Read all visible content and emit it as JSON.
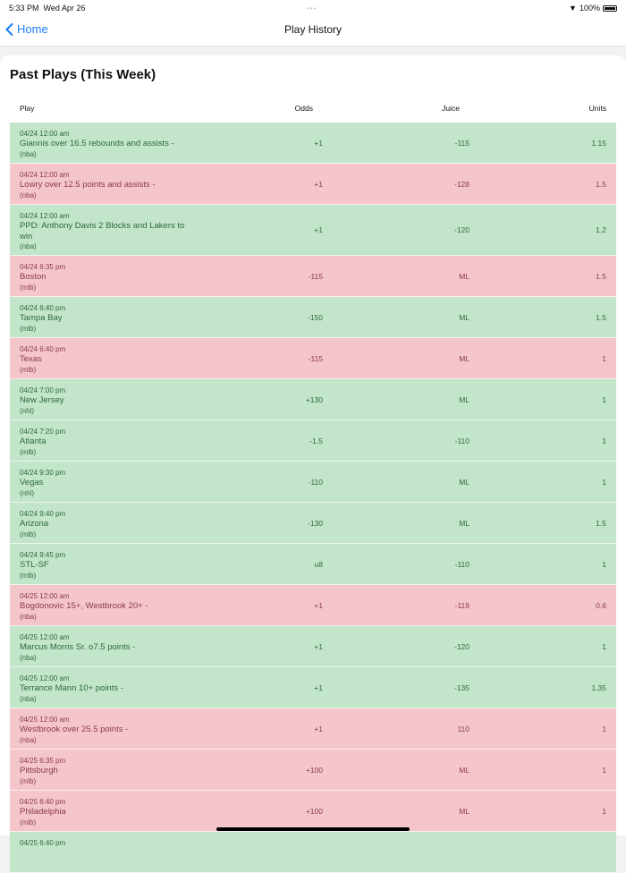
{
  "status_bar": {
    "time": "5:33 PM",
    "date": "Wed Apr 26",
    "battery": "100%"
  },
  "nav": {
    "back_label": "Home",
    "title": "Play History"
  },
  "section_title": "Past Plays (This Week)",
  "columns": {
    "play": "Play",
    "odds": "Odds",
    "juice": "Juice",
    "units": "Units"
  },
  "colors": {
    "win_bg": "#c3e5ca",
    "loss_bg": "#f4c6cc",
    "accent": "#1a7cf5"
  },
  "rows": [
    {
      "time": "04/24 12:00 am",
      "desc": "Giannis over 16.5 rebounds and assists -",
      "league": "(nba)",
      "odds": "+1",
      "juice": "-115",
      "units": "1.15",
      "result": "win"
    },
    {
      "time": "04/24 12:00 am",
      "desc": "Lowry over 12.5 points and assists -",
      "league": "(nba)",
      "odds": "+1",
      "juice": "-128",
      "units": "1.5",
      "result": "loss"
    },
    {
      "time": "04/24 12:00 am",
      "desc": "PPD: Anthony Davis 2 Blocks and Lakers to win",
      "league": "(nba)",
      "odds": "+1",
      "juice": "-120",
      "units": "1.2",
      "result": "win"
    },
    {
      "time": "04/24 6:35 pm",
      "desc": "Boston",
      "league": "(mlb)",
      "odds": "-115",
      "juice": "ML",
      "units": "1.5",
      "result": "loss"
    },
    {
      "time": "04/24 6:40 pm",
      "desc": "Tampa Bay",
      "league": "(mlb)",
      "odds": "-150",
      "juice": "ML",
      "units": "1.5",
      "result": "win"
    },
    {
      "time": "04/24 6:40 pm",
      "desc": "Texas",
      "league": "(mlb)",
      "odds": "-115",
      "juice": "ML",
      "units": "1",
      "result": "loss"
    },
    {
      "time": "04/24 7:00 pm",
      "desc": "New Jersey",
      "league": "(nhl)",
      "odds": "+130",
      "juice": "ML",
      "units": "1",
      "result": "win"
    },
    {
      "time": "04/24 7:20 pm",
      "desc": "Atlanta",
      "league": "(mlb)",
      "odds": "-1.5",
      "juice": "-110",
      "units": "1",
      "result": "win"
    },
    {
      "time": "04/24 9:30 pm",
      "desc": "Vegas",
      "league": "(nhl)",
      "odds": "-110",
      "juice": "ML",
      "units": "1",
      "result": "win"
    },
    {
      "time": "04/24 9:40 pm",
      "desc": "Arizona",
      "league": "(mlb)",
      "odds": "-130",
      "juice": "ML",
      "units": "1.5",
      "result": "win"
    },
    {
      "time": "04/24 9:45 pm",
      "desc": "STL-SF",
      "league": "(mlb)",
      "odds": "u8",
      "juice": "-110",
      "units": "1",
      "result": "win"
    },
    {
      "time": "04/25 12:00 am",
      "desc": "Bogdonovic 15+, Westbrook 20+ -",
      "league": "(nba)",
      "odds": "+1",
      "juice": "-119",
      "units": "0.6",
      "result": "loss"
    },
    {
      "time": "04/25 12:00 am",
      "desc": "Marcus Morris Sr. o7.5 points -",
      "league": "(nba)",
      "odds": "+1",
      "juice": "-120",
      "units": "1",
      "result": "win"
    },
    {
      "time": "04/25 12:00 am",
      "desc": "Terrance Mann 10+ points -",
      "league": "(nba)",
      "odds": "+1",
      "juice": "-135",
      "units": "1.35",
      "result": "win"
    },
    {
      "time": "04/25 12:00 am",
      "desc": "Westbrook over 25.5 points -",
      "league": "(nba)",
      "odds": "+1",
      "juice": "110",
      "units": "1",
      "result": "loss"
    },
    {
      "time": "04/25 6:35 pm",
      "desc": "Pittsburgh",
      "league": "(mlb)",
      "odds": "+100",
      "juice": "ML",
      "units": "1",
      "result": "loss"
    },
    {
      "time": "04/25 6:40 pm",
      "desc": "Philadelphia",
      "league": "(mlb)",
      "odds": "+100",
      "juice": "ML",
      "units": "1",
      "result": "loss"
    },
    {
      "time": "04/25 6:40 pm",
      "desc": "",
      "league": "",
      "odds": "",
      "juice": "",
      "units": "",
      "result": "win"
    }
  ]
}
